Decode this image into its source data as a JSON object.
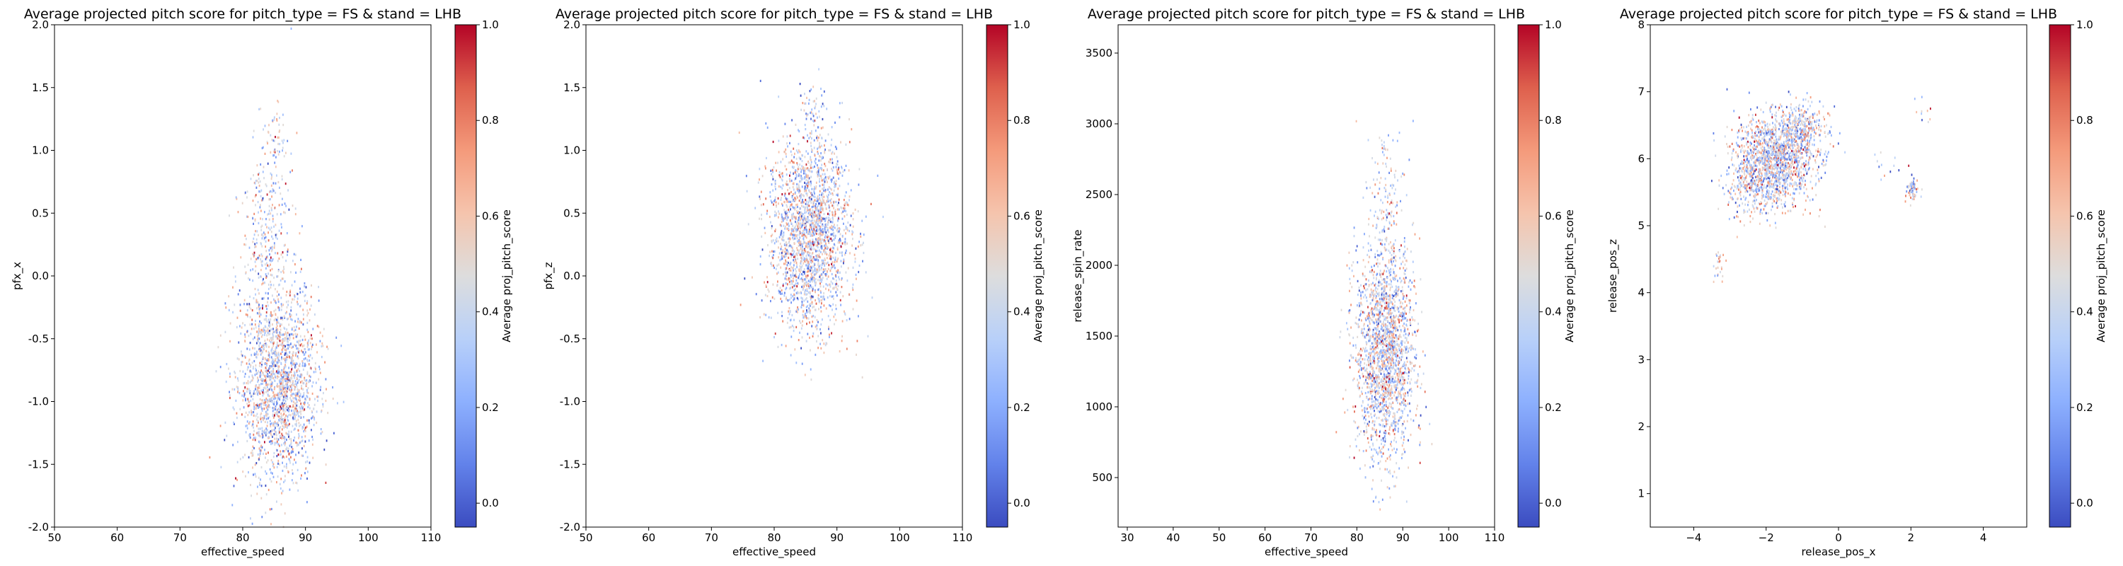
{
  "figure": {
    "colormap": "coolwarm",
    "background": "#ffffff"
  },
  "chart_data": [
    {
      "type": "heatmap",
      "title": "Average projected pitch score for pitch_type = FS & stand = LHB",
      "xlabel": "effective_speed",
      "ylabel": "pfx_x",
      "xlim": [
        50,
        110
      ],
      "ylim": [
        -2.0,
        2.0
      ],
      "xticks": [
        "50",
        "60",
        "70",
        "80",
        "90",
        "100",
        "110"
      ],
      "yticks": [
        "-2.0",
        "-1.5",
        "-1.0",
        "-0.5",
        "0.0",
        "0.5",
        "1.0",
        "1.5",
        "2.0"
      ],
      "colorbar_label": "Average proj_pitch_score",
      "colorbar_range": [
        -0.05,
        1.0
      ],
      "colorbar_ticks": [
        "0.0",
        "0.2",
        "0.4",
        "0.6",
        "0.8",
        "1.0"
      ],
      "grid": false,
      "clusters": [
        {
          "cx": 85.5,
          "cy": -0.85,
          "sx": 3.2,
          "sy": 0.38,
          "n": 1900
        },
        {
          "cx": 83.8,
          "cy": 0.35,
          "sx": 2.0,
          "sy": 0.38,
          "n": 320
        },
        {
          "cx": 85.0,
          "cy": 1.1,
          "sx": 1.0,
          "sy": 0.15,
          "n": 40
        }
      ]
    },
    {
      "type": "heatmap",
      "title": "Average projected pitch score for pitch_type = FS & stand = LHB",
      "xlabel": "effective_speed",
      "ylabel": "pfx_z",
      "xlim": [
        50,
        110
      ],
      "ylim": [
        -2.0,
        2.0
      ],
      "xticks": [
        "50",
        "60",
        "70",
        "80",
        "90",
        "100",
        "110"
      ],
      "yticks": [
        "-2.0",
        "-1.5",
        "-1.0",
        "-0.5",
        "0.0",
        "0.5",
        "1.0",
        "1.5",
        "2.0"
      ],
      "colorbar_label": "Average proj_pitch_score",
      "colorbar_range": [
        -0.05,
        1.0
      ],
      "colorbar_ticks": [
        "0.0",
        "0.2",
        "0.4",
        "0.6",
        "0.8",
        "1.0"
      ],
      "grid": false,
      "clusters": [
        {
          "cx": 85.5,
          "cy": 0.35,
          "sx": 3.3,
          "sy": 0.38,
          "n": 2100
        },
        {
          "cx": 86.0,
          "cy": 1.3,
          "sx": 1.2,
          "sy": 0.15,
          "n": 50
        }
      ]
    },
    {
      "type": "heatmap",
      "title": "Average projected pitch score for pitch_type = FS & stand = LHB",
      "xlabel": "effective_speed",
      "ylabel": "release_spin_rate",
      "xlim": [
        28,
        110
      ],
      "ylim": [
        150,
        3700
      ],
      "xticks": [
        "30",
        "40",
        "50",
        "60",
        "70",
        "80",
        "90",
        "100",
        "110"
      ],
      "yticks": [
        "500",
        "1000",
        "1500",
        "2000",
        "2500",
        "3000",
        "3500"
      ],
      "colorbar_label": "Average proj_pitch_score",
      "colorbar_range": [
        -0.05,
        1.0
      ],
      "colorbar_ticks": [
        "0.0",
        "0.2",
        "0.4",
        "0.6",
        "0.8",
        "1.0"
      ],
      "grid": false,
      "clusters": [
        {
          "cx": 86.0,
          "cy": 1400,
          "sx": 3.2,
          "sy": 380,
          "n": 2000
        },
        {
          "cx": 86.5,
          "cy": 2500,
          "sx": 2.0,
          "sy": 250,
          "n": 120
        }
      ]
    },
    {
      "type": "heatmap",
      "title": "Average projected pitch score for pitch_type = FS & stand = LHB",
      "xlabel": "release_pos_x",
      "ylabel": "release_pos_z",
      "xlim": [
        -5.2,
        5.2
      ],
      "ylim": [
        0.5,
        8.0
      ],
      "xticks": [
        "−4",
        "−2",
        "0",
        "2",
        "4"
      ],
      "yticks": [
        "1",
        "2",
        "3",
        "4",
        "5",
        "6",
        "7",
        "8"
      ],
      "colorbar_label": "Average proj_pitch_score",
      "colorbar_range": [
        -0.05,
        1.0
      ],
      "colorbar_ticks": [
        "0.0",
        "0.2",
        "0.4",
        "0.6",
        "0.8",
        "1.0"
      ],
      "grid": false,
      "clusters": [
        {
          "cx": -1.8,
          "cy": 6.0,
          "sx": 0.55,
          "sy": 0.33,
          "n": 1400
        },
        {
          "cx": -1.0,
          "cy": 6.45,
          "sx": 0.35,
          "sy": 0.2,
          "n": 300
        },
        {
          "cx": -2.5,
          "cy": 5.6,
          "sx": 0.3,
          "sy": 0.25,
          "n": 200
        },
        {
          "cx": 2.0,
          "cy": 5.55,
          "sx": 0.08,
          "sy": 0.1,
          "n": 70
        },
        {
          "cx": -3.3,
          "cy": 4.4,
          "sx": 0.1,
          "sy": 0.12,
          "n": 25
        },
        {
          "cx": 2.4,
          "cy": 6.7,
          "sx": 0.15,
          "sy": 0.1,
          "n": 10
        },
        {
          "cx": 1.2,
          "cy": 5.9,
          "sx": 0.3,
          "sy": 0.15,
          "n": 12
        }
      ]
    }
  ]
}
